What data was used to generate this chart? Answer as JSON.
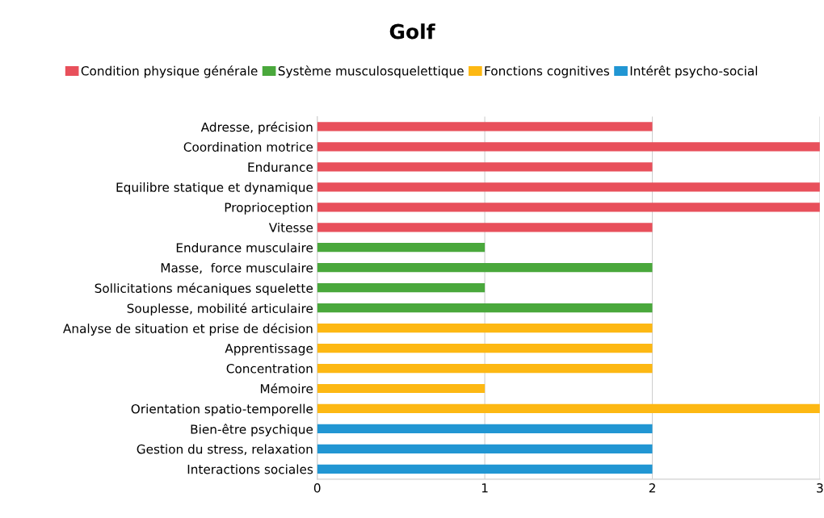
{
  "chart_data": {
    "type": "bar",
    "orientation": "horizontal",
    "title": "Golf",
    "categories": [
      "Adresse, précision",
      "Coordination motrice",
      "Endurance",
      "Equilibre statique et dynamique",
      "Proprioception",
      "Vitesse",
      "Endurance musculaire",
      "Masse,  force musculaire",
      "Sollicitations mécaniques squelette",
      "Souplesse, mobilité articulaire",
      "Analyse de situation et prise de décision",
      "Apprentissage",
      "Concentration",
      "Mémoire",
      "Orientation spatio-temporelle",
      "Bien-être psychique",
      "Gestion du stress, relaxation",
      "Interactions sociales"
    ],
    "series": [
      {
        "name": "Condition physique générale",
        "color": "#e8505b",
        "values": [
          2,
          3,
          2,
          3,
          3,
          2,
          null,
          null,
          null,
          null,
          null,
          null,
          null,
          null,
          null,
          null,
          null,
          null
        ]
      },
      {
        "name": "Système musculosquelettique",
        "color": "#4aa83c",
        "values": [
          null,
          null,
          null,
          null,
          null,
          null,
          1,
          2,
          1,
          2,
          null,
          null,
          null,
          null,
          null,
          null,
          null,
          null
        ]
      },
      {
        "name": "Fonctions cognitives",
        "color": "#fdb813",
        "values": [
          null,
          null,
          null,
          null,
          null,
          null,
          null,
          null,
          null,
          null,
          2,
          2,
          2,
          1,
          3,
          null,
          null,
          null
        ]
      },
      {
        "name": "Intérêt psycho-social",
        "color": "#2196d3",
        "values": [
          null,
          null,
          null,
          null,
          null,
          null,
          null,
          null,
          null,
          null,
          null,
          null,
          null,
          null,
          null,
          2,
          2,
          2
        ]
      }
    ],
    "xlim": [
      0,
      3
    ],
    "xticks": [
      0,
      1,
      2,
      3
    ],
    "grid": "x",
    "legend": "top"
  }
}
